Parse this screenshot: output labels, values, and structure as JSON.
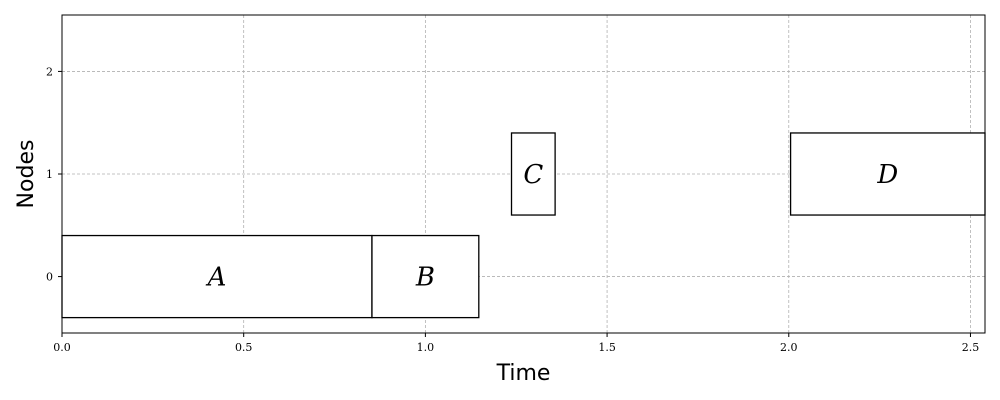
{
  "chart_data": {
    "type": "gantt",
    "xlabel": "Time",
    "ylabel": "Nodes",
    "xlim": [
      0.0,
      2.54
    ],
    "ylim": [
      -0.55,
      2.55
    ],
    "x_ticks": [
      0.0,
      0.5,
      1.0,
      1.5,
      2.0,
      2.5
    ],
    "x_tick_labels": [
      "0.0",
      "0.5",
      "1.0",
      "1.5",
      "2.0",
      "2.5"
    ],
    "y_ticks": [
      0,
      1,
      2
    ],
    "y_tick_labels": [
      "0",
      "1",
      "2"
    ],
    "grid": true,
    "bar_half_height": 0.4,
    "tasks": [
      {
        "label": "A",
        "node": 0,
        "start": 0.0,
        "end": 0.853
      },
      {
        "label": "B",
        "node": 0,
        "start": 0.853,
        "end": 1.147
      },
      {
        "label": "C",
        "node": 1,
        "start": 1.237,
        "end": 1.357
      },
      {
        "label": "D",
        "node": 1,
        "start": 2.005,
        "end": 2.54
      }
    ]
  }
}
